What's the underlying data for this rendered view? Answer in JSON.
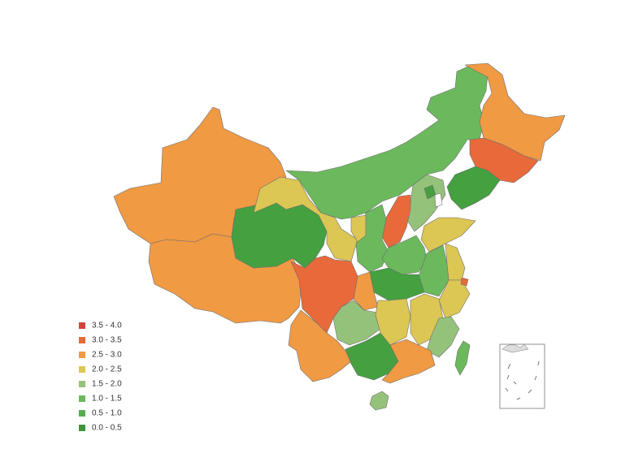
{
  "legend": {
    "items": [
      {
        "label": "3.5 - 4.0",
        "color": "#d6423a"
      },
      {
        "label": "3.0 - 3.5",
        "color": "#e8693a"
      },
      {
        "label": "2.5 - 3.0",
        "color": "#f09a44"
      },
      {
        "label": "2.0 - 2.5",
        "color": "#dcc654"
      },
      {
        "label": "1.5 - 2.0",
        "color": "#95c27a"
      },
      {
        "label": "1.0 - 1.5",
        "color": "#6bb95c"
      },
      {
        "label": "0.5 - 1.0",
        "color": "#57ad4d"
      },
      {
        "label": "0.0 - 0.5",
        "color": "#40963d"
      }
    ]
  }
}
